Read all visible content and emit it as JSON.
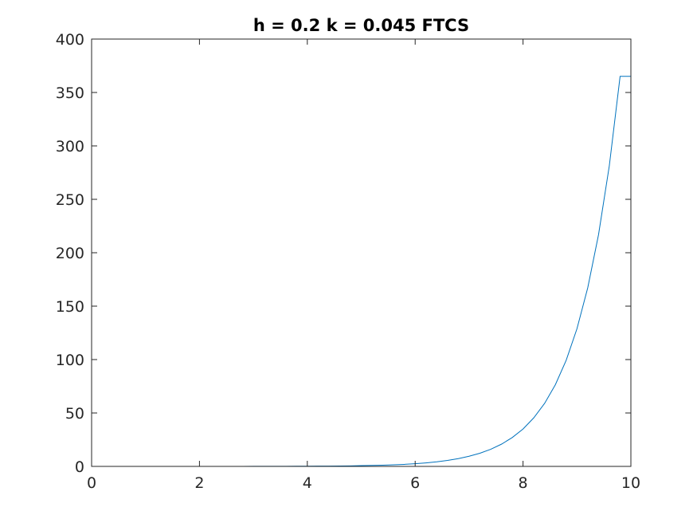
{
  "chart_data": {
    "type": "line",
    "title": "h = 0.2 k = 0.045 FTCS",
    "xlabel": "",
    "ylabel": "",
    "xlim": [
      0,
      10
    ],
    "ylim": [
      0,
      400
    ],
    "xticks": [
      0,
      2,
      4,
      6,
      8,
      10
    ],
    "yticks": [
      0,
      50,
      100,
      150,
      200,
      250,
      300,
      350,
      400
    ],
    "grid": false,
    "legend": "none",
    "series": [
      {
        "color": "#0072bd",
        "x": [
          0,
          0.2,
          0.4,
          0.6,
          0.8,
          1,
          1.2,
          1.4,
          1.6,
          1.8,
          2,
          2.2,
          2.4,
          2.6,
          2.8,
          3,
          3.2,
          3.4,
          3.6,
          3.8,
          4,
          4.2,
          4.4,
          4.6,
          4.8,
          5,
          5.2,
          5.4,
          5.6,
          5.8,
          6,
          6.2,
          6.4,
          6.6,
          6.8,
          7,
          7.2,
          7.4,
          7.6,
          7.8,
          8,
          8.2,
          8.4,
          8.6,
          8.8,
          9,
          9.2,
          9.4,
          9.6,
          9.8,
          10
        ],
        "y": [
          0,
          0,
          0,
          0,
          0,
          0,
          0,
          0,
          0,
          0,
          0,
          0,
          0,
          0,
          0,
          0.1,
          0.1,
          0.1,
          0.1,
          0.2,
          0.2,
          0.3,
          0.3,
          0.4,
          0.5,
          0.7,
          0.9,
          1.1,
          1.5,
          1.9,
          2.5,
          3.3,
          4.3,
          5.6,
          7.3,
          9.5,
          12.3,
          16,
          20.8,
          27,
          35,
          45.5,
          59,
          76.5,
          99.3,
          128.8,
          167.2,
          216.9,
          281.4,
          365.1,
          365.1
        ]
      }
    ]
  }
}
